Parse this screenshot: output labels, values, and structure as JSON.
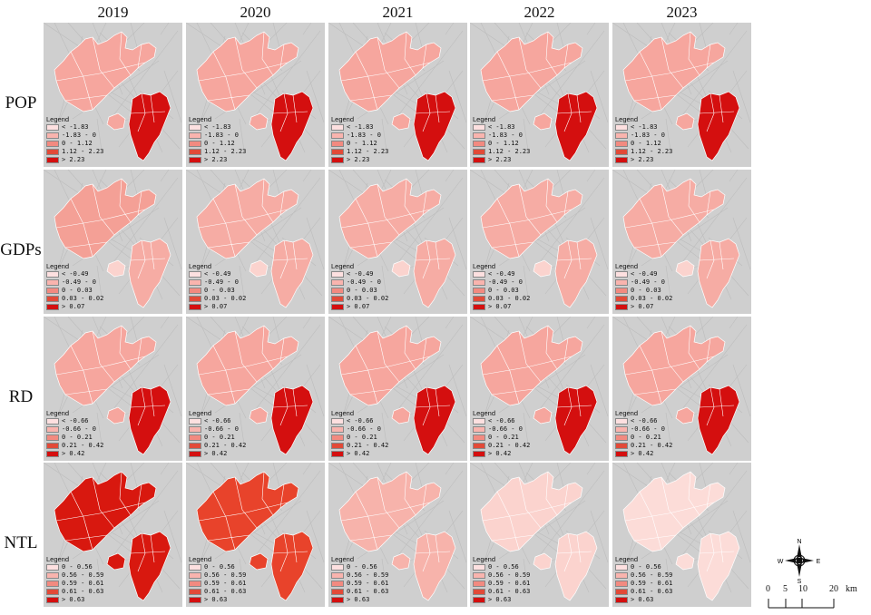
{
  "years": [
    "2019",
    "2020",
    "2021",
    "2022",
    "2023"
  ],
  "legend_title": "Legend",
  "rows": [
    {
      "label": "POP",
      "classes": [
        "< -1.83",
        "-1.83 - 0",
        "0 - 1.12",
        "1.12 - 2.23",
        "> 2.23"
      ]
    },
    {
      "label": "GDPs",
      "classes": [
        "< -0.49",
        "-0.49 - 0",
        "0 - 0.03",
        "0.03 - 0.02",
        "> 0.07"
      ]
    },
    {
      "label": "RD",
      "classes": [
        "< -0.66",
        "-0.66 - 0",
        "0 - 0.21",
        "0.21 - 0.42",
        "> 0.42"
      ]
    },
    {
      "label": "NTL",
      "classes": [
        "0 - 0.56",
        "0.56 - 0.59",
        "0.59 - 0.61",
        "0.61 - 0.63",
        "> 0.63"
      ]
    }
  ],
  "class_colors": [
    "#fde0e0",
    "#f9b4ae",
    "#f28a80",
    "#e24a38",
    "#d40f0f"
  ],
  "panel_fills": [
    [
      "#f6a69e",
      "#f6a69e",
      "#f6a69e",
      "#f6a69e",
      "#f6a69e"
    ],
    [
      "#f4a096",
      "#f6aca4",
      "#f6aca4",
      "#f6aca4",
      "#f6aca4"
    ],
    [
      "#f6a69e",
      "#f6a69e",
      "#f6a69e",
      "#f6a69e",
      "#f6a69e"
    ],
    [
      "#d8180f",
      "#e8432b",
      "#f7b3ab",
      "#fbd3ce",
      "#fcdcd8"
    ]
  ],
  "east_fills": [
    [
      "#d40f0f",
      "#d40f0f",
      "#d40f0f",
      "#d40f0f",
      "#d40f0f"
    ],
    [
      "#f6aca4",
      "#f6aca4",
      "#f6aca4",
      "#f6aca4",
      "#f6aca4"
    ],
    [
      "#d40f0f",
      "#d40f0f",
      "#d40f0f",
      "#d40f0f",
      "#d40f0f"
    ],
    [
      "#d8180f",
      "#e8432b",
      "#f7b3ab",
      "#fbd3ce",
      "#fcdcd8"
    ]
  ],
  "compass": {
    "n": "N",
    "s": "S",
    "e": "E",
    "w": "W"
  },
  "scale": {
    "ticks": [
      "0",
      "5",
      "10",
      "20"
    ],
    "unit": "km"
  }
}
